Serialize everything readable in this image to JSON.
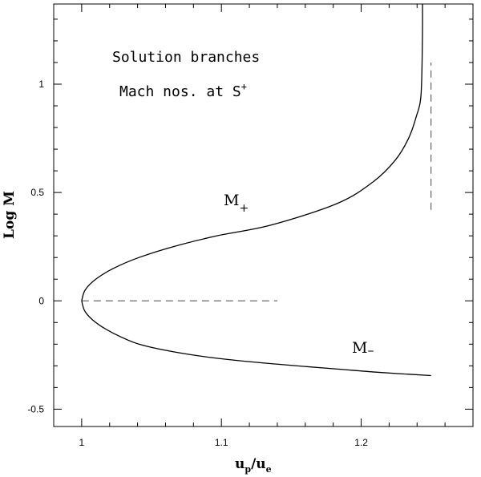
{
  "chart_data": {
    "type": "line",
    "title": "",
    "xlabel": "u",
    "xlabel_sub1": "p",
    "xlabel_sep": "/u",
    "xlabel_sub2": "e",
    "ylabel": "Log M",
    "xlim": [
      0.98,
      1.28
    ],
    "ylim": [
      -0.58,
      1.37
    ],
    "x_ticks": [
      1,
      1.1,
      1.2
    ],
    "x_tick_labels": [
      "1",
      "1.1",
      "1.2"
    ],
    "y_ticks": [
      -0.5,
      0,
      0.5,
      1
    ],
    "y_tick_labels": [
      "-0.5",
      "0",
      "0.5",
      "1"
    ],
    "grid": false,
    "annotations": {
      "line1": "Solution branches",
      "line2": "Mach nos. at S",
      "line2_sup": "+"
    },
    "series": [
      {
        "name": "M+",
        "label_main": "M",
        "label_sub": "+",
        "x": [
          1.0,
          1.0025,
          1.0101,
          1.0228,
          1.041,
          1.0655,
          1.0968,
          1.1357,
          1.1831,
          1.2087,
          1.2245,
          1.2339,
          1.2394,
          1.2428,
          1.2438,
          1.2439
        ],
        "y": [
          0,
          0.05,
          0.1,
          0.15,
          0.2,
          0.25,
          0.3,
          0.35,
          0.45,
          0.55,
          0.65,
          0.75,
          0.85,
          0.95,
          1.2,
          1.37
        ]
      },
      {
        "name": "M-",
        "label_main": "M",
        "label_sub": "–",
        "x": [
          1.0,
          1.0025,
          1.0101,
          1.0228,
          1.041,
          1.0655,
          1.0968,
          1.1357,
          1.1831,
          1.2125,
          1.25
        ],
        "y": [
          0,
          -0.05,
          -0.1,
          -0.15,
          -0.2,
          -0.235,
          -0.265,
          -0.29,
          -0.315,
          -0.33,
          -0.345
        ]
      }
    ],
    "reference_lines": [
      {
        "x": [
          1.0,
          1.14
        ],
        "y": [
          0,
          0
        ]
      },
      {
        "x": [
          1.25,
          1.25
        ],
        "y": [
          0.42,
          1.1
        ]
      }
    ]
  }
}
